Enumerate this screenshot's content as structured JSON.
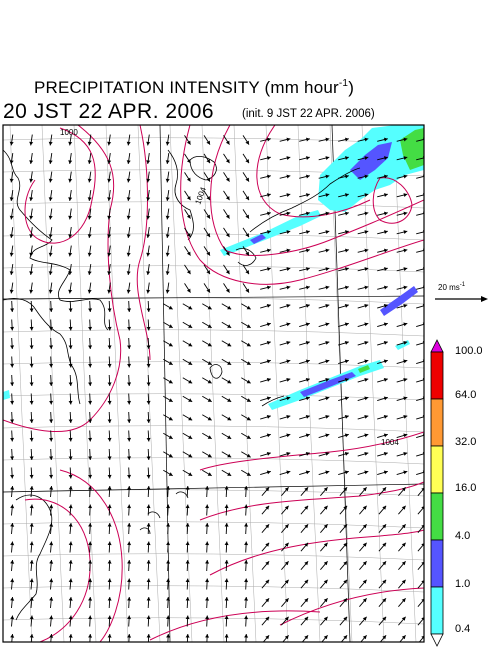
{
  "title": {
    "main": "PRECIPITATION INTENSITY (mm hour",
    "exponent": "-1",
    "close": ")",
    "valid_time": "20 JST 22 APR. 2006",
    "init_time": "(init. 9 JST 22 APR. 2006)"
  },
  "reference_vector": {
    "label": "20 ms",
    "exponent": "-1",
    "speed_ms": 20
  },
  "colorbar": {
    "levels": [
      "100.0",
      "64.0",
      "32.0",
      "16.0",
      "4.0",
      "1.0",
      "0.4"
    ],
    "colors": [
      "#dd00dd",
      "#ee0000",
      "#ff9933",
      "#ffff55",
      "#44dd44",
      "#5555ff",
      "#55ffff",
      "#ffffff"
    ]
  },
  "isobar_labels": [
    "1000",
    "1004",
    "1004"
  ],
  "colors": {
    "isobar": "#cc0055",
    "coast": "#000000",
    "grid": "#aaaaaa",
    "frame": "#000000"
  }
}
